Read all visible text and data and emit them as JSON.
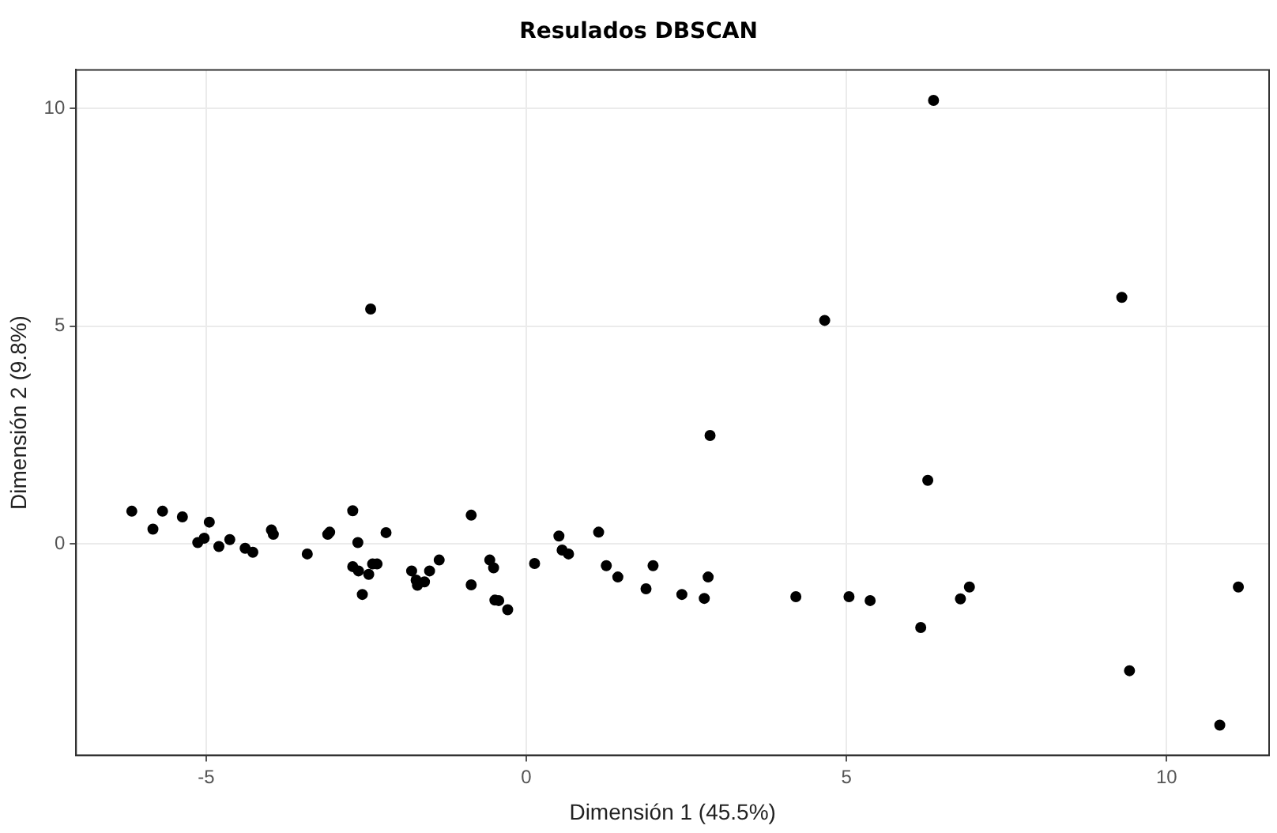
{
  "chart_data": {
    "type": "scatter",
    "title": "Resulados DBSCAN",
    "xlabel": "Dimensión 1 (45.5%)",
    "ylabel": "Dimensión 2 (9.8%)",
    "x": [
      -6.16,
      -5.83,
      -5.68,
      -5.37,
      -4.95,
      -5.13,
      -5.03,
      -4.8,
      -4.63,
      -4.39,
      -4.27,
      -3.98,
      -3.95,
      -3.42,
      -3.1,
      -3.07,
      -2.71,
      -2.63,
      -2.71,
      -2.62,
      -2.56,
      -2.46,
      -2.4,
      -2.33,
      -2.19,
      -1.79,
      -1.7,
      -1.72,
      -1.59,
      -1.51,
      -1.36,
      -0.86,
      -0.86,
      -0.57,
      -0.51,
      -0.49,
      -0.43,
      -0.29,
      0.13,
      0.51,
      0.56,
      0.66,
      1.13,
      1.25,
      1.43,
      1.87,
      1.98,
      2.43,
      2.78,
      2.84,
      4.21,
      5.04,
      5.37,
      6.27,
      6.78,
      6.92,
      6.16,
      6.36,
      9.3,
      9.42,
      10.83,
      11.12,
      -2.43,
      2.87,
      4.66
    ],
    "values": [
      0.75,
      0.34,
      0.75,
      0.62,
      0.5,
      0.03,
      0.13,
      -0.06,
      0.1,
      -0.1,
      -0.19,
      0.32,
      0.22,
      -0.23,
      0.22,
      0.27,
      0.76,
      0.03,
      -0.52,
      -0.62,
      -1.16,
      -0.7,
      -0.46,
      -0.46,
      0.26,
      -0.62,
      -0.95,
      -0.83,
      -0.87,
      -0.62,
      -0.37,
      0.66,
      -0.94,
      -0.37,
      -0.55,
      -1.29,
      -1.3,
      -1.51,
      -0.45,
      0.18,
      -0.14,
      -0.23,
      0.27,
      -0.5,
      -0.76,
      -1.03,
      -0.5,
      -1.16,
      -1.25,
      -0.76,
      -1.21,
      -1.21,
      -1.3,
      1.46,
      -1.26,
      -0.99,
      -1.92,
      10.18,
      5.66,
      -2.91,
      -4.16,
      -0.99,
      5.39,
      2.49,
      5.13
    ],
    "color": "#000000",
    "marker": "circle",
    "xlim": [
      -7.03,
      11.6
    ],
    "ylim": [
      -4.85,
      10.88
    ],
    "xticks": [
      -5,
      0,
      5,
      10
    ],
    "yticks": [
      0,
      5,
      10
    ],
    "grid": true,
    "legend": false
  }
}
